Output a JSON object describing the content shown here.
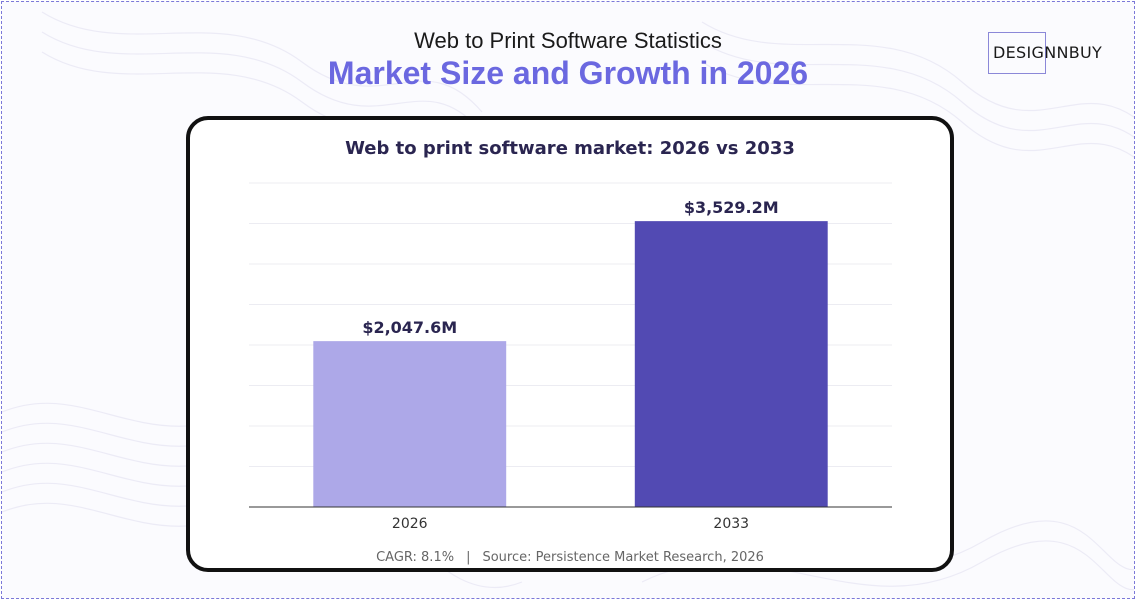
{
  "header": {
    "subtitle": "Web to Print Software Statistics",
    "title": "Market Size and Growth in 2026"
  },
  "logo": {
    "text": "DESIGNNBUY"
  },
  "colors": {
    "accent": "#6b68e0",
    "bar_2026": "#ada8e8",
    "bar_2033": "#524ab3",
    "label_text": "#2a2550"
  },
  "chart_data": {
    "type": "bar",
    "title": "Web to print software market: 2026 vs 2033",
    "categories": [
      "2026",
      "2033"
    ],
    "values": [
      2047.6,
      3529.2
    ],
    "data_labels": [
      "$2,047.6M",
      "$3,529.2M"
    ],
    "ylim": [
      0,
      4000
    ],
    "grid": true,
    "legend": "none",
    "xlabel": "",
    "ylabel": ""
  },
  "footer": {
    "cagr": "CAGR: 8.1%",
    "separator": "|",
    "source": "Source: Persistence Market Research, 2026"
  }
}
